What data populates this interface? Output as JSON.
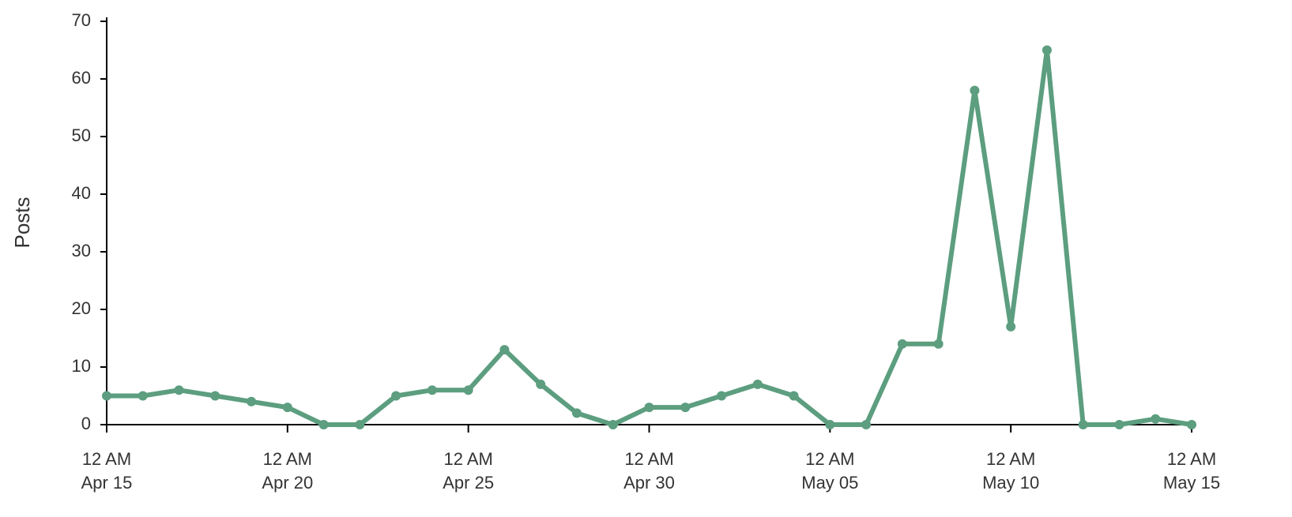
{
  "chart_data": {
    "type": "line",
    "ylabel": "Posts",
    "x": [
      "Apr 15",
      "Apr 16",
      "Apr 17",
      "Apr 18",
      "Apr 19",
      "Apr 20",
      "Apr 21",
      "Apr 22",
      "Apr 23",
      "Apr 24",
      "Apr 25",
      "Apr 26",
      "Apr 27",
      "Apr 28",
      "Apr 29",
      "Apr 30",
      "May 01",
      "May 02",
      "May 03",
      "May 04",
      "May 05",
      "May 06",
      "May 07",
      "May 08",
      "May 09",
      "May 10",
      "May 11",
      "May 12",
      "May 13",
      "May 14",
      "May 15"
    ],
    "series": [
      {
        "name": "Posts",
        "color": "#5c9e7f",
        "values": [
          5,
          5,
          6,
          5,
          4,
          3,
          0,
          0,
          5,
          6,
          6,
          13,
          7,
          2,
          0,
          3,
          3,
          5,
          7,
          5,
          0,
          0,
          14,
          14,
          58,
          17,
          65,
          0,
          0,
          1,
          0
        ]
      }
    ],
    "ylim": [
      0,
      70
    ],
    "yticks": [
      0,
      10,
      20,
      30,
      40,
      50,
      60,
      70
    ],
    "xticks": [
      {
        "value": "Apr 15",
        "label": [
          "12 AM",
          "Apr 15"
        ]
      },
      {
        "value": "Apr 20",
        "label": [
          "12 AM",
          "Apr 20"
        ]
      },
      {
        "value": "Apr 25",
        "label": [
          "12 AM",
          "Apr 25"
        ]
      },
      {
        "value": "Apr 30",
        "label": [
          "12 AM",
          "Apr 30"
        ]
      },
      {
        "value": "May 05",
        "label": [
          "12 AM",
          "May 05"
        ]
      },
      {
        "value": "May 10",
        "label": [
          "12 AM",
          "May 10"
        ]
      },
      {
        "value": "May 15",
        "label": [
          "12 AM",
          "May 15"
        ]
      }
    ],
    "grid": false
  }
}
